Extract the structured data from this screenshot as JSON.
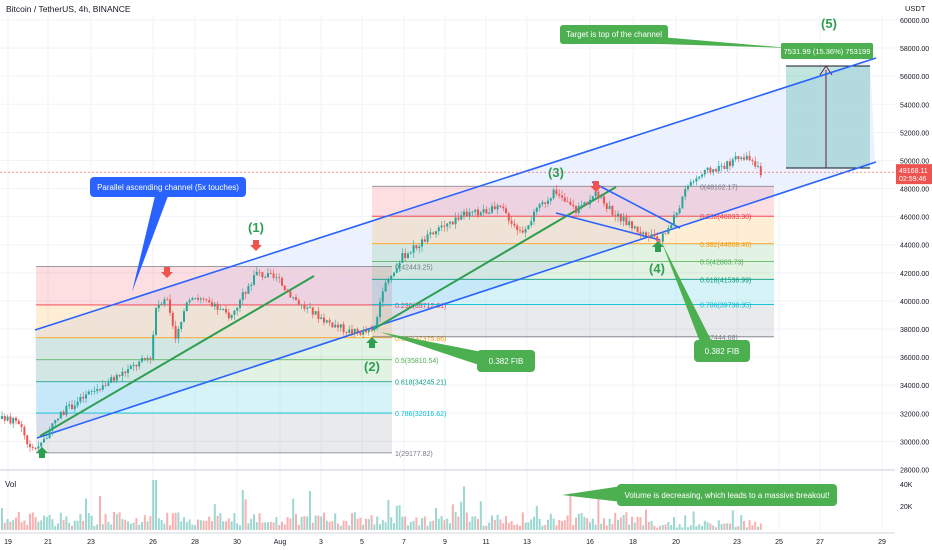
{
  "header": {
    "title": "Bitcoin / TetherUS, 4h, BINANCE",
    "currency": "USDT"
  },
  "colors": {
    "up": "#26a69a",
    "down": "#ef5350",
    "channel": "#2962ff",
    "trend": "#2e9e4f",
    "label_green": "#4caf50",
    "label_blue": "#2962ff",
    "price_tag": "#ef5350"
  },
  "chart_data": {
    "type": "candlestick",
    "title": "Bitcoin / TetherUS, 4h, BINANCE",
    "ylim": [
      27000,
      61500
    ],
    "y_ticks": [
      "28000.00",
      "30000.00",
      "32000.00",
      "34000.00",
      "36000.00",
      "38000.00",
      "40000.00",
      "42000.00",
      "44000.00",
      "46000.00",
      "48000.00",
      "50000.00",
      "52000.00",
      "54000.00",
      "56000.00",
      "58000.00",
      "60000.00"
    ],
    "x_ticks": [
      "19",
      "21",
      "23",
      "26",
      "28",
      "30",
      "Aug",
      "3",
      "5",
      "7",
      "9",
      "11",
      "13",
      "16",
      "18",
      "20",
      "23",
      "25",
      "27",
      "29"
    ],
    "price_label": "49168.11",
    "countdown": "02:59:46",
    "fib_left": [
      {
        "label": "0.236(39712.61)",
        "price": 39712.61
      },
      {
        "label": "0.382(37375.86)",
        "price": 37375.86
      },
      {
        "label": "0.5(35810.54)",
        "price": 35810.54
      },
      {
        "label": "0.618(34245.21)",
        "price": 34245.21
      },
      {
        "label": "0.786(32016.62)",
        "price": 32016.62
      },
      {
        "label": "1(29177.82)",
        "price": 29177.82
      }
    ],
    "fib_left_top": {
      "label": "0(42443.25)",
      "price": 42443.25
    },
    "fib_right": [
      {
        "label": "0.236(46033.30)",
        "price": 46033.3
      },
      {
        "label": "0.382(44068.46)",
        "price": 44068.46
      },
      {
        "label": "0.5(42803.73)",
        "price": 42803.73
      },
      {
        "label": "0.618(41538.99)",
        "price": 41538.99
      },
      {
        "label": "0.786(39738.35)",
        "price": 39738.35
      },
      {
        "label": "1(37444.68)",
        "price": 37444.68
      }
    ],
    "fib_right_top": {
      "label": "0(48162.17)",
      "price": 48162.17
    },
    "target_label": "7531.99 (15.36%) 753199",
    "volume_label": "Vol",
    "volume_ticks": [
      "40K",
      "20K"
    ],
    "waves": [
      "(1)",
      "(2)",
      "(3)",
      "(4)",
      "(5)"
    ]
  },
  "annotations": {
    "channel_note": "Parallel ascending channel (5x touches)",
    "target_note": "Target is top of the channel",
    "fib_note_1": "0.382 FIB",
    "fib_note_2": "0.382 FIB",
    "volume_note": "Volume is decreasing, which leads to a massive breakout!"
  }
}
